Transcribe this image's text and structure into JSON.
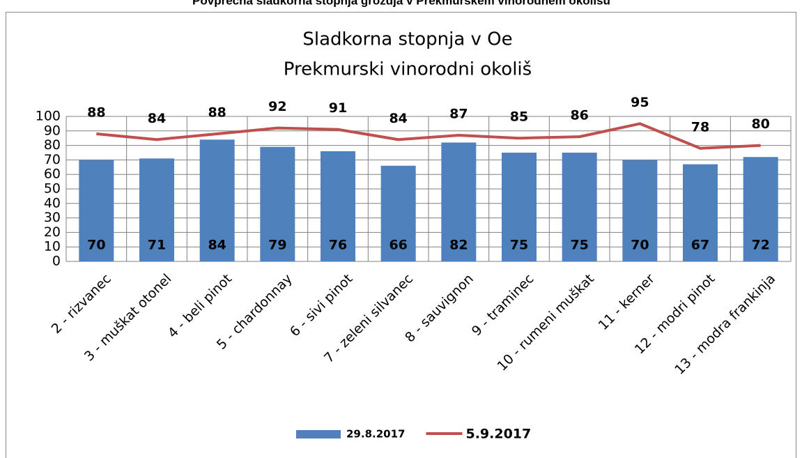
{
  "header": {
    "title": "Povprečna sladkorna stopnja grozdja v Prekmurskem vinorodnem okolišu"
  },
  "chart_data": {
    "type": "bar_line",
    "title": "Sladkorna stopnja v Oe",
    "subtitle": "Prekmurski vinorodni okoliš",
    "categories": [
      "2 - rizvanec",
      "3 - muškat otonel",
      "4 - beli pinot",
      "5 - chardonnay",
      "6 - sivi pinot",
      "7 - zeleni silvanec",
      "8 - sauvignon",
      "9 - traminec",
      "10 - rumeni muškat",
      "11 - kerner",
      "12 - modri pinot",
      "13 - modra frankinja"
    ],
    "series": [
      {
        "name": "29.8.2017",
        "type": "bar",
        "color": "#4f81bd",
        "values": [
          70,
          71,
          84,
          79,
          76,
          66,
          82,
          75,
          75,
          70,
          67,
          72
        ]
      },
      {
        "name": "5.9.2017",
        "type": "line",
        "color": "#c0504d",
        "values": [
          88,
          84,
          88,
          92,
          91,
          84,
          87,
          85,
          86,
          95,
          78,
          80
        ]
      }
    ],
    "ylim": [
      0,
      100
    ],
    "yticks": [
      0,
      10,
      20,
      30,
      40,
      50,
      60,
      70,
      80,
      90,
      100
    ],
    "grid": true,
    "legend": "bottom"
  }
}
